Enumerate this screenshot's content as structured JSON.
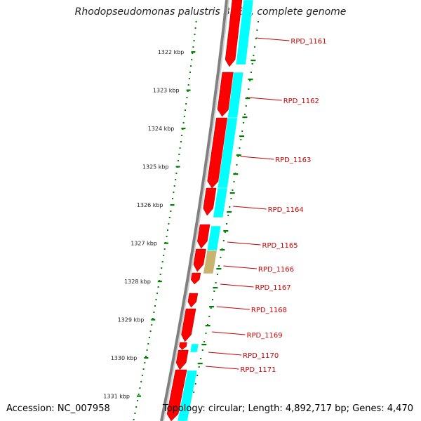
{
  "title": "Rhodopseudomonas palustris BisB5, complete genome",
  "footer": {
    "accession": "Accession: NC_007958",
    "summary": "Topology: circular; Length: 4,892,717 bp; Genes: 4,470"
  },
  "colors": {
    "forward_cds": "#ff0000",
    "reverse_strand": "#00ffff",
    "other_feature": "#c8b46e",
    "backbone": "#808080",
    "ruler": "#008000",
    "label": "#cc0000"
  },
  "ruler_ticks": [
    {
      "label": "1322 kbp"
    },
    {
      "label": "1323 kbp"
    },
    {
      "label": "1324 kbp"
    },
    {
      "label": "1325 kbp"
    },
    {
      "label": "1326 kbp"
    },
    {
      "label": "1327 kbp"
    },
    {
      "label": "1328 kbp"
    },
    {
      "label": "1329 kbp"
    },
    {
      "label": "1330 kbp"
    },
    {
      "label": "1331 kbp"
    }
  ],
  "genes": [
    {
      "label": "RPD_1161"
    },
    {
      "label": "RPD_1162"
    },
    {
      "label": "RPD_1163"
    },
    {
      "label": "RPD_1164"
    },
    {
      "label": "RPD_1165"
    },
    {
      "label": "RPD_1166"
    },
    {
      "label": "RPD_1167"
    },
    {
      "label": "RPD_1168"
    },
    {
      "label": "RPD_1169"
    },
    {
      "label": "RPD_1170"
    },
    {
      "label": "RPD_1171"
    }
  ]
}
